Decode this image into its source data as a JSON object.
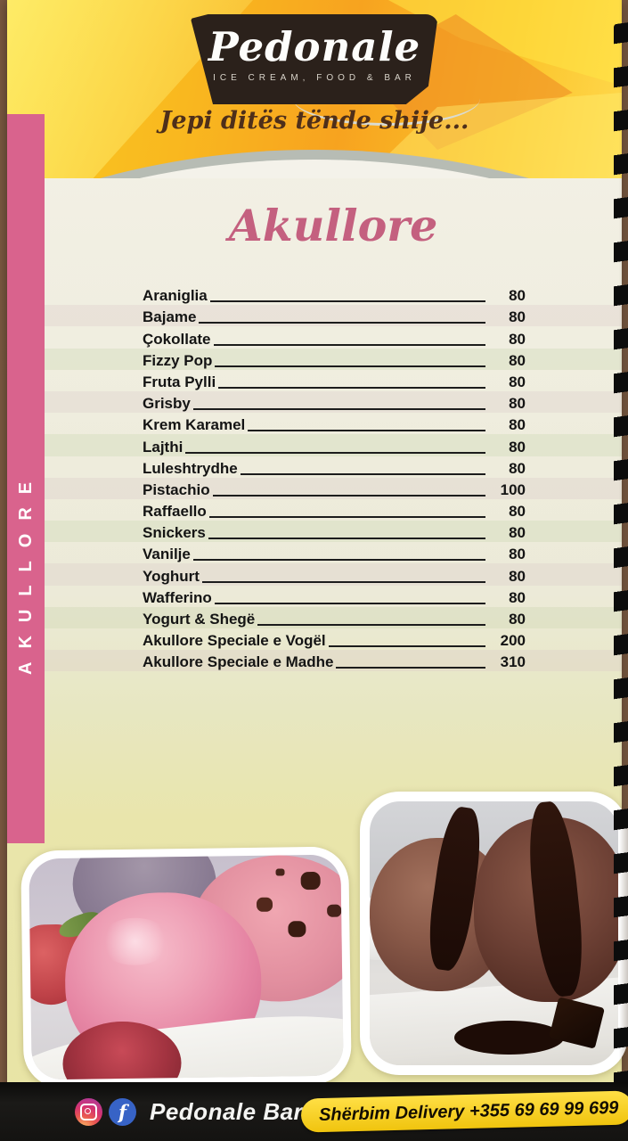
{
  "header": {
    "brand": "Pedonale",
    "brand_sub": "ICE CREAM, FOOD & BAR",
    "tagline": "Jepi ditës tënde shije..."
  },
  "sidebar": {
    "label": "AKULLORE"
  },
  "menu": {
    "title": "Akullore",
    "items": [
      {
        "name": "Araniglia",
        "price": "80"
      },
      {
        "name": "Bajame",
        "price": "80"
      },
      {
        "name": "Çokollate",
        "price": "80"
      },
      {
        "name": "Fizzy Pop",
        "price": "80"
      },
      {
        "name": "Fruta Pylli",
        "price": "80"
      },
      {
        "name": "Grisby",
        "price": "80"
      },
      {
        "name": "Krem Karamel",
        "price": "80"
      },
      {
        "name": "Lajthi",
        "price": "80"
      },
      {
        "name": "Luleshtrydhe",
        "price": "80"
      },
      {
        "name": "Pistachio",
        "price": "100"
      },
      {
        "name": "Raffaello",
        "price": "80"
      },
      {
        "name": "Snickers",
        "price": "80"
      },
      {
        "name": "Vanilje",
        "price": "80"
      },
      {
        "name": "Yoghurt",
        "price": "80"
      },
      {
        "name": "Wafferino",
        "price": "80"
      },
      {
        "name": "Yogurt & Shegë",
        "price": "80"
      },
      {
        "name": "Akullore Speciale e Vogël",
        "price": "200"
      },
      {
        "name": "Akullore Speciale e Madhe",
        "price": "310"
      }
    ]
  },
  "footer": {
    "brand": "Pedonale Bar",
    "facebook_glyph": "f",
    "delivery": "Shërbim Delivery +355 69 69 99 699"
  },
  "colors": {
    "accent_pink": "#d9638d",
    "title_pink": "#c4607f",
    "header_yellow": "#f7a31f",
    "pill_yellow": "#f2c511",
    "footer_black": "#141311",
    "facebook_blue": "#3763c6"
  }
}
